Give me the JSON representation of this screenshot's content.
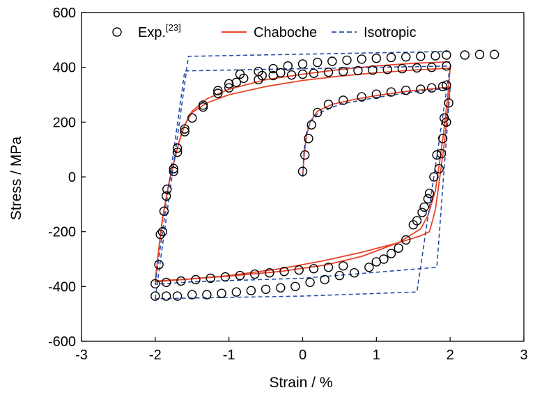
{
  "chart_data": {
    "type": "scatter",
    "xlabel": "Strain / %",
    "ylabel": "Stress / MPa",
    "xlim": [
      -3,
      3
    ],
    "ylim": [
      -600,
      600
    ],
    "xticks": [
      "-3",
      "-2",
      "-1",
      "0",
      "1",
      "2",
      "3"
    ],
    "yticks": [
      "-600",
      "-400",
      "-200",
      "0",
      "200",
      "400",
      "600"
    ],
    "legend": {
      "placement": "top"
    },
    "series": [
      {
        "name": "Exp.",
        "name_superscript": "[23]",
        "kind": "markers",
        "marker": "open-circle",
        "color": "#000000",
        "points": [
          [
            0.0,
            20
          ],
          [
            0.03,
            80
          ],
          [
            0.08,
            140
          ],
          [
            0.12,
            190
          ],
          [
            0.2,
            235
          ],
          [
            0.35,
            265
          ],
          [
            0.55,
            280
          ],
          [
            0.8,
            292
          ],
          [
            1.0,
            302
          ],
          [
            1.2,
            310
          ],
          [
            1.4,
            316
          ],
          [
            1.6,
            320
          ],
          [
            1.75,
            325
          ],
          [
            1.9,
            330
          ],
          [
            1.95,
            335
          ],
          [
            1.98,
            270
          ],
          [
            1.95,
            200
          ],
          [
            1.92,
            215
          ],
          [
            1.9,
            140
          ],
          [
            1.88,
            85
          ],
          [
            1.85,
            30
          ],
          [
            1.82,
            80
          ],
          [
            1.78,
            0
          ],
          [
            1.72,
            -60
          ],
          [
            1.7,
            -80
          ],
          [
            1.65,
            -110
          ],
          [
            1.62,
            -130
          ],
          [
            1.55,
            -160
          ],
          [
            1.5,
            -175
          ],
          [
            1.4,
            -230
          ],
          [
            1.3,
            -260
          ],
          [
            1.2,
            -280
          ],
          [
            1.1,
            -300
          ],
          [
            1.0,
            -310
          ],
          [
            0.9,
            -330
          ],
          [
            0.7,
            -350
          ],
          [
            0.5,
            -360
          ],
          [
            0.3,
            -375
          ],
          [
            0.1,
            -385
          ],
          [
            -0.1,
            -400
          ],
          [
            -0.3,
            -405
          ],
          [
            -0.5,
            -410
          ],
          [
            -0.7,
            -415
          ],
          [
            -0.9,
            -420
          ],
          [
            -1.1,
            -425
          ],
          [
            -1.3,
            -430
          ],
          [
            -1.5,
            -430
          ],
          [
            -1.7,
            -435
          ],
          [
            -1.85,
            -435
          ],
          [
            -2.0,
            -435
          ],
          [
            -1.85,
            -385
          ],
          [
            -1.65,
            -380
          ],
          [
            -1.45,
            -375
          ],
          [
            -1.25,
            -370
          ],
          [
            -1.05,
            -365
          ],
          [
            -0.85,
            -360
          ],
          [
            -0.65,
            -355
          ],
          [
            -0.45,
            -350
          ],
          [
            -0.25,
            -345
          ],
          [
            -0.05,
            -340
          ],
          [
            0.15,
            -335
          ],
          [
            0.35,
            -330
          ],
          [
            0.55,
            -325
          ],
          [
            -2.0,
            -390
          ],
          [
            -1.95,
            -320
          ],
          [
            -1.93,
            -210
          ],
          [
            -1.9,
            -200
          ],
          [
            -1.88,
            -125
          ],
          [
            -1.85,
            -70
          ],
          [
            -1.84,
            -45
          ],
          [
            -1.75,
            20
          ],
          [
            -1.75,
            30
          ],
          [
            -1.7,
            90
          ],
          [
            -1.7,
            105
          ],
          [
            -1.6,
            165
          ],
          [
            -1.6,
            175
          ],
          [
            -1.5,
            215
          ],
          [
            -1.35,
            255
          ],
          [
            -1.35,
            262
          ],
          [
            -1.15,
            305
          ],
          [
            -1.15,
            315
          ],
          [
            -1.0,
            325
          ],
          [
            -1.0,
            340
          ],
          [
            -0.9,
            345
          ],
          [
            -0.8,
            360
          ],
          [
            -0.6,
            355
          ],
          [
            -0.55,
            370
          ],
          [
            -0.4,
            370
          ],
          [
            -0.3,
            380
          ],
          [
            -0.15,
            372
          ],
          [
            0.0,
            375
          ],
          [
            0.15,
            378
          ],
          [
            0.35,
            382
          ],
          [
            0.55,
            385
          ],
          [
            0.75,
            388
          ],
          [
            0.95,
            390
          ],
          [
            1.15,
            392
          ],
          [
            1.35,
            395
          ],
          [
            1.55,
            398
          ],
          [
            1.75,
            400
          ],
          [
            1.95,
            405
          ],
          [
            -0.85,
            375
          ],
          [
            -0.6,
            385
          ],
          [
            -0.4,
            395
          ],
          [
            -0.2,
            405
          ],
          [
            0.0,
            412
          ],
          [
            0.2,
            418
          ],
          [
            0.4,
            422
          ],
          [
            0.6,
            426
          ],
          [
            0.8,
            430
          ],
          [
            1.0,
            433
          ],
          [
            1.2,
            436
          ],
          [
            1.4,
            438
          ],
          [
            1.6,
            440
          ],
          [
            1.8,
            442
          ],
          [
            1.95,
            445
          ],
          [
            2.2,
            445
          ],
          [
            2.4,
            447
          ],
          [
            2.6,
            447
          ]
        ]
      },
      {
        "name": "Chaboche",
        "kind": "line",
        "color": "#e8452c",
        "style": "solid",
        "segments": [
          [
            [
              0,
              0
            ],
            [
              0.02,
              80
            ],
            [
              0.05,
              150
            ],
            [
              0.1,
              200
            ],
            [
              0.2,
              240
            ],
            [
              0.4,
              265
            ],
            [
              0.7,
              283
            ],
            [
              1.0,
              297
            ],
            [
              1.4,
              312
            ],
            [
              1.8,
              323
            ],
            [
              2.0,
              328
            ]
          ],
          [
            [
              2.0,
              328
            ],
            [
              1.97,
              250
            ],
            [
              1.92,
              120
            ],
            [
              1.86,
              0
            ],
            [
              1.8,
              -120
            ],
            [
              1.72,
              -200
            ],
            [
              1.6,
              -215
            ],
            [
              1.3,
              -240
            ],
            [
              0.8,
              -275
            ],
            [
              0.3,
              -305
            ],
            [
              -0.3,
              -335
            ],
            [
              -1.0,
              -360
            ],
            [
              -1.5,
              -372
            ],
            [
              -2.0,
              -383
            ]
          ],
          [
            [
              -2.0,
              -383
            ],
            [
              -1.95,
              -260
            ],
            [
              -1.9,
              -150
            ],
            [
              -1.82,
              -30
            ],
            [
              -1.75,
              50
            ],
            [
              -1.68,
              125
            ],
            [
              -1.6,
              190
            ],
            [
              -1.5,
              235
            ],
            [
              -1.3,
              270
            ],
            [
              -1.0,
              300
            ],
            [
              -0.5,
              330
            ],
            [
              0.0,
              352
            ],
            [
              0.5,
              368
            ],
            [
              1.0,
              380
            ],
            [
              1.5,
              390
            ],
            [
              2.0,
              397
            ]
          ],
          [
            [
              2.0,
              397
            ],
            [
              1.97,
              300
            ],
            [
              1.92,
              180
            ],
            [
              1.86,
              60
            ],
            [
              1.8,
              -50
            ],
            [
              1.7,
              -140
            ],
            [
              1.6,
              -190
            ],
            [
              1.3,
              -240
            ],
            [
              0.8,
              -290
            ],
            [
              0.3,
              -322
            ],
            [
              -0.3,
              -345
            ],
            [
              -1.0,
              -362
            ],
            [
              -1.5,
              -372
            ],
            [
              -2.0,
              -380
            ]
          ],
          [
            [
              -2.0,
              -380
            ],
            [
              -1.95,
              -260
            ],
            [
              -1.9,
              -150
            ],
            [
              -1.82,
              -30
            ],
            [
              -1.75,
              50
            ],
            [
              -1.68,
              125
            ],
            [
              -1.6,
              190
            ],
            [
              -1.5,
              240
            ],
            [
              -1.3,
              285
            ],
            [
              -1.0,
              320
            ],
            [
              -0.5,
              355
            ],
            [
              0.0,
              375
            ],
            [
              0.5,
              392
            ],
            [
              1.0,
              405
            ],
            [
              1.5,
              415
            ],
            [
              2.0,
              420
            ]
          ]
        ]
      },
      {
        "name": "Isotropic",
        "kind": "line",
        "color": "#2a4fa8",
        "style": "dashed",
        "segments": [
          [
            [
              0,
              0
            ],
            [
              0.02,
              100
            ],
            [
              0.05,
              160
            ],
            [
              0.1,
              200
            ],
            [
              0.2,
              230
            ],
            [
              0.5,
              265
            ],
            [
              1.0,
              290
            ],
            [
              1.5,
              310
            ],
            [
              2.0,
              325
            ]
          ],
          [
            [
              2.0,
              325
            ],
            [
              1.82,
              -330
            ],
            [
              0.0,
              -370
            ],
            [
              -1.5,
              -383
            ],
            [
              -2.0,
              -392
            ]
          ],
          [
            [
              -2.0,
              -392
            ],
            [
              -1.6,
              387
            ],
            [
              0.0,
              395
            ],
            [
              1.0,
              400
            ],
            [
              2.0,
              405
            ]
          ],
          [
            [
              2.0,
              405
            ],
            [
              1.55,
              -420
            ],
            [
              0.0,
              -435
            ],
            [
              -1.5,
              -442
            ],
            [
              -2.0,
              -445
            ]
          ],
          [
            [
              -2.0,
              -445
            ],
            [
              -1.55,
              440
            ],
            [
              0.0,
              448
            ],
            [
              1.0,
              453
            ],
            [
              2.0,
              458
            ]
          ]
        ]
      }
    ]
  }
}
